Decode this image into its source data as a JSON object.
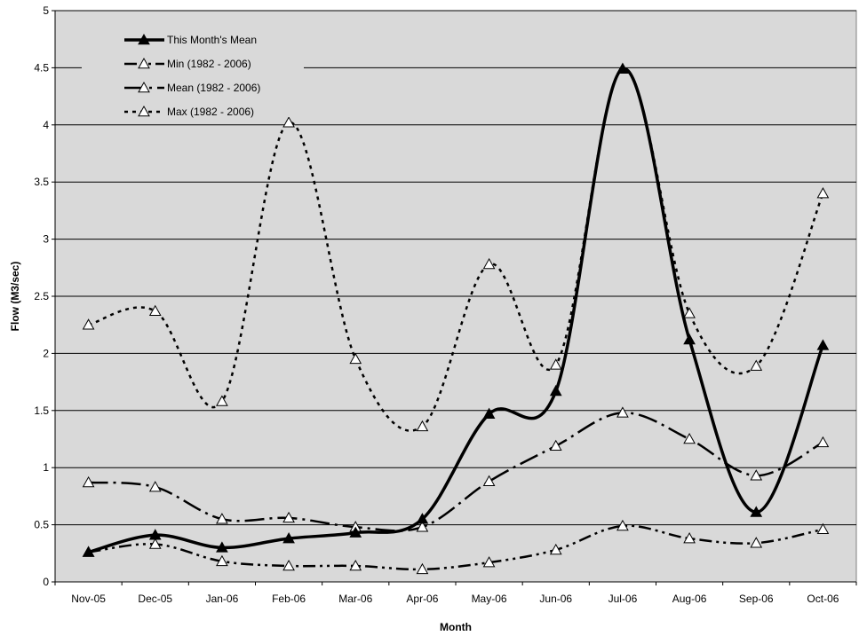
{
  "chart_data": {
    "type": "line",
    "title": "",
    "xlabel": "Month",
    "ylabel": "Flow  (M3/sec)",
    "categories": [
      "Nov-05",
      "Dec-05",
      "Jan-06",
      "Feb-06",
      "Mar-06",
      "Apr-06",
      "May-06",
      "Jun-06",
      "Jul-06",
      "Aug-06",
      "Sep-06",
      "Oct-06"
    ],
    "ylim": [
      0,
      5
    ],
    "yticks": [
      "0",
      "0.5",
      "1",
      "1.5",
      "2",
      "2.5",
      "3",
      "3.5",
      "4",
      "4.5",
      "5"
    ],
    "grid": "horizontal",
    "legend_position": "top-left",
    "plot_background": "#d9d9d9",
    "series": [
      {
        "name": "This Month's Mean",
        "style": "solid-thick",
        "marker": "filled-triangle",
        "color": "#000000",
        "values": [
          0.26,
          0.41,
          0.3,
          0.38,
          0.43,
          0.55,
          1.47,
          1.67,
          4.49,
          2.12,
          0.61,
          2.07
        ]
      },
      {
        "name": "Min (1982 - 2006)",
        "style": "dash-dot-dot",
        "marker": "open-triangle",
        "color": "#000000",
        "values": [
          0.26,
          0.33,
          0.18,
          0.14,
          0.14,
          0.11,
          0.17,
          0.28,
          0.49,
          0.38,
          0.34,
          0.46
        ]
      },
      {
        "name": "Mean (1982 - 2006)",
        "style": "long-dash-dot",
        "marker": "open-triangle",
        "color": "#000000",
        "values": [
          0.87,
          0.83,
          0.55,
          0.56,
          0.48,
          0.48,
          0.88,
          1.19,
          1.48,
          1.25,
          0.93,
          1.22
        ]
      },
      {
        "name": "Max (1982 - 2006)",
        "style": "dotted",
        "marker": "open-triangle",
        "color": "#000000",
        "values": [
          2.25,
          2.37,
          1.58,
          4.02,
          1.95,
          1.36,
          2.78,
          1.9,
          4.49,
          2.35,
          1.89,
          3.4
        ]
      }
    ]
  }
}
